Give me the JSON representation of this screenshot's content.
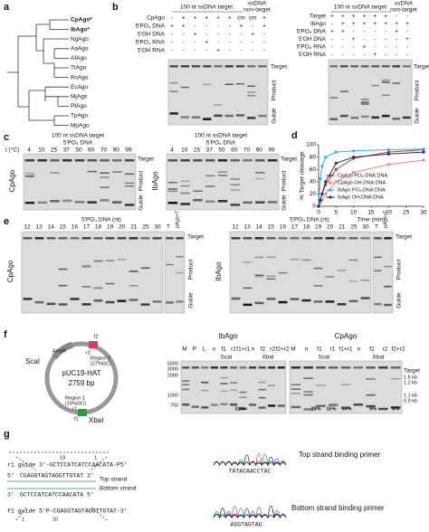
{
  "panel_labels": [
    "a",
    "b",
    "c",
    "d",
    "e",
    "f",
    "g"
  ],
  "a": {
    "species": [
      "CpAgo*",
      "IbAgo*",
      "NgAgo",
      "AaAgo",
      "AfAgo",
      "TtAgo",
      "RsAgo",
      "EcAgo",
      "MjAgo",
      "PfAgo",
      "TpAgo",
      "MpAgo"
    ]
  },
  "b": {
    "left": {
      "header": "100 nt ssDNA target",
      "nontarget": [
        "ssDNA",
        "non-target"
      ],
      "rows": [
        {
          "label": "CpAgo",
          "signs": [
            "-",
            "+",
            "+",
            "+",
            "+",
            "+",
            "cm",
            "cm",
            "+"
          ]
        },
        {
          "label": "5'PO₄ DNA",
          "signs": [
            "+",
            "+",
            "-",
            "-",
            "-",
            "-",
            "+",
            "-",
            "+"
          ]
        },
        {
          "label": "5'OH DNA",
          "signs": [
            "-",
            "-",
            "+",
            "-",
            "-",
            "-",
            "-",
            "+",
            "-"
          ]
        },
        {
          "label": "5'PO₄ RNA",
          "signs": [
            "-",
            "-",
            "-",
            "+",
            "-",
            "-",
            "-",
            "-",
            "-"
          ]
        },
        {
          "label": "5'OH RNA",
          "signs": [
            "-",
            "-",
            "-",
            "-",
            "+",
            "-",
            "-",
            "-",
            "-"
          ]
        }
      ],
      "side": [
        "Target",
        "Product",
        "Guide"
      ]
    },
    "right": {
      "header": "100 nt ssDNA target",
      "nontarget": [
        "ssDNA",
        "non-target"
      ],
      "rows": [
        {
          "label": "Target",
          "signs": [
            "+",
            "+",
            "+",
            "+",
            "+",
            "+",
            "-",
            "-"
          ]
        },
        {
          "label": "IbAgo",
          "signs": [
            "-",
            "+",
            "+",
            "+",
            "+",
            "+",
            "+",
            "+"
          ]
        },
        {
          "label": "5'PO₄ DNA",
          "signs": [
            "+",
            "+",
            "-",
            "-",
            "-",
            "-",
            "+",
            "-"
          ]
        },
        {
          "label": "5'OH DNA",
          "signs": [
            "-",
            "-",
            "+",
            "-",
            "-",
            "-",
            "-",
            "+"
          ]
        },
        {
          "label": "5'PO₄ RNA",
          "signs": [
            "-",
            "-",
            "-",
            "+",
            "-",
            "-",
            "-",
            "-"
          ]
        },
        {
          "label": "5'OH RNA",
          "signs": [
            "-",
            "-",
            "-",
            "-",
            "+",
            "-",
            "-",
            "-"
          ]
        }
      ],
      "side": [
        "Target",
        "Product",
        "Guide"
      ]
    }
  },
  "c": {
    "left": {
      "header": "100 nt ssDNA target",
      "guide": "5'PO₄ DNA",
      "t_label": "t (°C)",
      "temps": [
        "4",
        "10",
        "25",
        "37",
        "50",
        "60",
        "70",
        "90",
        "99"
      ],
      "protein": "CpAgo",
      "side": [
        "Target",
        "Product",
        "Guide"
      ]
    },
    "right": {
      "header": "100 nt ssDNA target",
      "guide": "5'PO₄ DNA",
      "temps": [
        "4",
        "10",
        "25",
        "37",
        "50",
        "60",
        "70",
        "90",
        "99"
      ],
      "protein": "IbAgo",
      "side": [
        "Target",
        "Product",
        "Guide"
      ]
    }
  },
  "chart_data": {
    "type": "line",
    "ylabel": "% Target cleavage",
    "xlabel": "Time (min)",
    "x": [
      0,
      0.5,
      1,
      2,
      5,
      10,
      20,
      30
    ],
    "xlim": [
      0,
      30
    ],
    "xticks": [
      0,
      5,
      10,
      15,
      20,
      25,
      30
    ],
    "ylim": [
      0,
      100
    ],
    "yticks": [
      0,
      20,
      40,
      60,
      80,
      100
    ],
    "series": [
      {
        "name": "CpAgo PO₄-DNA:DNA",
        "color": "#c0392b",
        "values": [
          0,
          10,
          20,
          35,
          60,
          78,
          88,
          92
        ]
      },
      {
        "name": "CpAgo OH-DNA:DNA",
        "color": "#f08a7e",
        "values": [
          0,
          5,
          10,
          20,
          40,
          55,
          68,
          75
        ]
      },
      {
        "name": "IbAgo PO₄-DNA:DNA",
        "color": "#2bb5e0",
        "values": [
          0,
          45,
          65,
          80,
          88,
          90,
          92,
          93
        ]
      },
      {
        "name": "IbAgo OH-DNA:DNA",
        "color": "#1f2d6e",
        "values": [
          0,
          10,
          20,
          40,
          70,
          80,
          85,
          88
        ]
      }
    ]
  },
  "e": {
    "left": {
      "header": "5'PO₄ DNA (nt)",
      "lanes": [
        "12",
        "13",
        "14",
        "15",
        "16",
        "17",
        "18",
        "19",
        "20",
        "21",
        "25",
        "30"
      ],
      "extra": [
        "T",
        "pAgo+T"
      ],
      "protein": "CpAgo",
      "side": [
        "Target",
        "Product",
        "Guide"
      ]
    },
    "right": {
      "header": "5'PO₄ DNA (nt)",
      "lanes": [
        "12",
        "13",
        "14",
        "15",
        "16",
        "17",
        "18",
        "19",
        "20",
        "21",
        "25",
        "30"
      ],
      "extra": [
        "T",
        "pAgo+T"
      ],
      "protein": "IbAgo",
      "side": [
        "Target",
        "Product",
        "Guide"
      ]
    }
  },
  "f": {
    "plasmid": {
      "name": "pUC19-HAT",
      "size": "2759 bp",
      "scai": "ScaI",
      "xbai": "XbaI",
      "f2": "f2",
      "r2": "r2",
      "region2": [
        "Region 2",
        "(27%GC)"
      ],
      "region1": [
        "Region 1",
        "(19%GC)"
      ],
      "r1": "r1",
      "f1": "f1",
      "ampr": "AmpR"
    },
    "gel": {
      "ibago": "IbAgo",
      "cpago": "CpAgo",
      "lanes_a": [
        "M",
        "P",
        "L",
        "n",
        "f1",
        "r1",
        "f1+r1",
        "n",
        "f2",
        "r2",
        "f2+r2"
      ],
      "lanes_b": [
        "M",
        "n",
        "f1",
        "r1",
        "f1+r1",
        "n",
        "f2",
        "r2",
        "f2+r2"
      ],
      "scai": [
        "ScaI",
        "ScaI"
      ],
      "xbai": [
        "XbaI",
        "XbaI"
      ],
      "markers": [
        "5000",
        "3000",
        "2000",
        "1000",
        "750"
      ],
      "side": [
        "Target",
        "1.6 kb",
        "1.2 kb",
        "1.1 kb",
        "0.9 kb"
      ],
      "percents": [
        "31%",
        "28%",
        "15%",
        "59%",
        "9%",
        "4%"
      ]
    }
  },
  "g": {
    "r1_guide": "r1 guide 3'-GCTCCATCATCCAACATA-P5'",
    "top_seq": "CGAGGTAGTAGGTTGTAT",
    "bottom_seq": "GCTCCATCATCCAACATA",
    "f1_guide": "f1 guide 5'P-CGAGGTAGTAGGTTGTAT-3'",
    "top_strand": "Top strand",
    "bottom_strand": "Bottom strand",
    "nums": [
      "19",
      "1",
      "1",
      "10"
    ],
    "ends": [
      "5'",
      "3'",
      "3'",
      "5'"
    ],
    "trace1": "TATACAACCTAC",
    "trace1_label": "Top strand binding primer",
    "trace2": "AGGTAGTAG",
    "trace2_label": "Bottom strand binding primer"
  }
}
